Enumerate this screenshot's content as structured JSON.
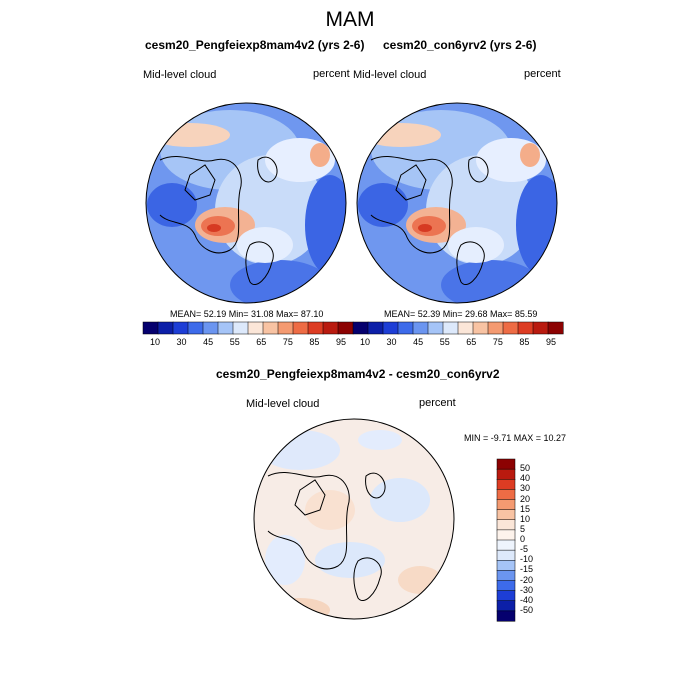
{
  "season_title": "MAM",
  "panels": [
    {
      "title": "cesm20_Pengfeiexp8mam4v2 (yrs 2-6)",
      "left_label": "Mid-level cloud",
      "right_label": "percent",
      "stats": "MEAN=  52.19  Min=  31.08  Max=  87.10"
    },
    {
      "title": "cesm20_con6yrv2 (yrs 2-6)",
      "left_label": "Mid-level cloud",
      "right_label": "percent",
      "stats": "MEAN=  52.39  Min=  29.68  Max=  85.59"
    }
  ],
  "top_colorbar": {
    "labels": [
      "10",
      "30",
      "45",
      "55",
      "65",
      "75",
      "85",
      "95"
    ],
    "colors": [
      "#05006e",
      "#0c1fa8",
      "#1d3ed6",
      "#3d6bea",
      "#6b95f0",
      "#a5c4f7",
      "#dde9fb",
      "#fbe6d8",
      "#f8c3a3",
      "#f49a71",
      "#ee6c45",
      "#dd3c23",
      "#b91a0f",
      "#8c0202"
    ]
  },
  "diff_panel": {
    "title": "cesm20_Pengfeiexp8mam4v2 - cesm20_con6yrv2",
    "left_label": "Mid-level cloud",
    "right_label": "percent",
    "stats": "MIN =  -9.71 MAX =  10.27"
  },
  "diff_colorbar": {
    "labels": [
      "50",
      "40",
      "30",
      "20",
      "15",
      "10",
      "5",
      "0",
      "-5",
      "-10",
      "-15",
      "-20",
      "-30",
      "-40",
      "-50"
    ],
    "colors": [
      "#8c0202",
      "#b91a0f",
      "#dd3c23",
      "#ee6c45",
      "#f49a71",
      "#f8c3a3",
      "#fbe6d8",
      "#fdf3ec",
      "#eef4fd",
      "#dde9fb",
      "#a5c4f7",
      "#6b95f0",
      "#3d6bea",
      "#1d3ed6",
      "#0c1fa8",
      "#05006e"
    ]
  }
}
